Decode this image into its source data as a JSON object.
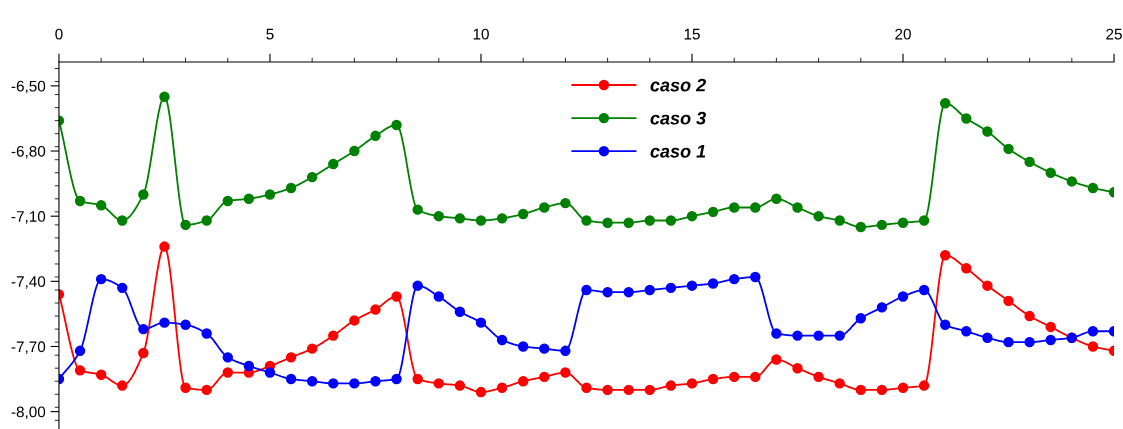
{
  "chart_data": {
    "type": "line",
    "x": [
      0,
      0.5,
      1,
      1.5,
      2,
      2.5,
      3,
      3.5,
      4,
      4.5,
      5,
      5.5,
      6,
      6.5,
      7,
      7.5,
      8,
      8.5,
      9,
      9.5,
      10,
      10.5,
      11,
      11.5,
      12,
      12.5,
      13,
      13.5,
      14,
      14.5,
      15,
      15.5,
      16,
      16.5,
      17,
      17.5,
      18,
      18.5,
      19,
      19.5,
      20,
      20.5,
      21,
      21.5,
      22,
      22.5,
      23,
      23.5,
      24,
      24.5,
      25
    ],
    "series": [
      {
        "name": "caso 2",
        "color": "#ff0000",
        "values": [
          -7.46,
          -7.81,
          -7.83,
          -7.88,
          -7.73,
          -7.24,
          -7.89,
          -7.9,
          -7.82,
          -7.82,
          -7.79,
          -7.75,
          -7.71,
          -7.65,
          -7.58,
          -7.53,
          -7.47,
          -7.85,
          -7.87,
          -7.88,
          -7.91,
          -7.89,
          -7.86,
          -7.84,
          -7.82,
          -7.89,
          -7.9,
          -7.9,
          -7.9,
          -7.88,
          -7.87,
          -7.85,
          -7.84,
          -7.84,
          -7.76,
          -7.8,
          -7.84,
          -7.87,
          -7.9,
          -7.9,
          -7.89,
          -7.88,
          -7.28,
          -7.34,
          -7.42,
          -7.49,
          -7.56,
          -7.61,
          -7.66,
          -7.7,
          -7.72
        ]
      },
      {
        "name": "caso 3",
        "color": "#008000",
        "values": [
          -6.66,
          -7.03,
          -7.05,
          -7.12,
          -7.0,
          -6.55,
          -7.14,
          -7.12,
          -7.03,
          -7.02,
          -7.0,
          -6.97,
          -6.92,
          -6.86,
          -6.8,
          -6.73,
          -6.68,
          -7.07,
          -7.1,
          -7.11,
          -7.12,
          -7.11,
          -7.09,
          -7.06,
          -7.04,
          -7.12,
          -7.13,
          -7.13,
          -7.12,
          -7.12,
          -7.1,
          -7.08,
          -7.06,
          -7.06,
          -7.02,
          -7.06,
          -7.1,
          -7.12,
          -7.15,
          -7.14,
          -7.13,
          -7.12,
          -6.58,
          -6.65,
          -6.71,
          -6.79,
          -6.85,
          -6.9,
          -6.94,
          -6.97,
          -6.99
        ]
      },
      {
        "name": "caso 1",
        "color": "#0000ff",
        "values": [
          -7.85,
          -7.72,
          -7.39,
          -7.43,
          -7.62,
          -7.59,
          -7.6,
          -7.64,
          -7.75,
          -7.79,
          -7.82,
          -7.85,
          -7.86,
          -7.87,
          -7.87,
          -7.86,
          -7.85,
          -7.42,
          -7.47,
          -7.54,
          -7.59,
          -7.67,
          -7.7,
          -7.71,
          -7.72,
          -7.44,
          -7.45,
          -7.45,
          -7.44,
          -7.43,
          -7.42,
          -7.41,
          -7.39,
          -7.38,
          -7.64,
          -7.65,
          -7.65,
          -7.65,
          -7.57,
          -7.52,
          -7.47,
          -7.44,
          -7.6,
          -7.63,
          -7.66,
          -7.68,
          -7.68,
          -7.67,
          -7.66,
          -7.63,
          -7.63
        ]
      }
    ],
    "xlim": [
      0,
      25
    ],
    "xticks": [
      0,
      5,
      10,
      15,
      20,
      25
    ],
    "ylim": [
      -8.08,
      -6.39
    ],
    "yticks": [
      {
        "value": -8.0,
        "label": "-8,00"
      },
      {
        "value": -7.7,
        "label": "-7,70"
      },
      {
        "value": -7.4,
        "label": "-7,40"
      },
      {
        "value": -7.1,
        "label": "-7,10"
      },
      {
        "value": -6.8,
        "label": "-6,80"
      },
      {
        "value": -6.5,
        "label": "-6,50"
      }
    ],
    "marker": "circle",
    "line_style": "solid",
    "grid": false,
    "legend": "top center"
  }
}
